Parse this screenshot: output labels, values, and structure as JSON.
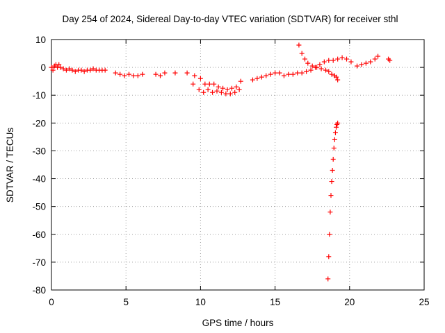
{
  "chart_data": {
    "type": "scatter",
    "title": "Day 254 of 2024, Sidereal Day-to-day VTEC variation (SDTVAR) for receiver sthl",
    "xlabel": "GPS time / hours",
    "ylabel": "SDTVAR / TECUs",
    "xlim": [
      0,
      25
    ],
    "ylim": [
      -80,
      10
    ],
    "xticks": [
      0,
      5,
      10,
      15,
      20,
      25
    ],
    "yticks": [
      10,
      0,
      -10,
      -20,
      -30,
      -40,
      -50,
      -60,
      -70,
      -80
    ],
    "grid": true,
    "marker": "+",
    "color": "#ff0000",
    "series": [
      {
        "name": "SDTVAR",
        "x": [
          0.0,
          0.1,
          0.2,
          0.3,
          0.4,
          0.5,
          0.6,
          0.8,
          1.0,
          1.2,
          1.4,
          1.6,
          1.8,
          2.0,
          2.2,
          2.4,
          2.6,
          2.8,
          3.0,
          3.2,
          3.4,
          3.6,
          4.3,
          4.6,
          4.9,
          5.2,
          5.5,
          5.8,
          6.1,
          7.0,
          7.3,
          7.6,
          8.3,
          9.1,
          9.6,
          10.0,
          10.3,
          10.6,
          10.9,
          11.2,
          11.5,
          11.8,
          12.1,
          12.4,
          12.7,
          9.5,
          9.9,
          10.2,
          10.5,
          10.8,
          11.1,
          11.4,
          11.7,
          12.0,
          12.3,
          12.6,
          13.5,
          13.8,
          14.1,
          14.4,
          14.7,
          15.0,
          15.3,
          15.6,
          15.9,
          16.2,
          16.5,
          16.8,
          17.1,
          17.4,
          17.7,
          18.0,
          18.3,
          18.6,
          18.9,
          19.2,
          19.5,
          19.8,
          20.1,
          20.5,
          20.8,
          21.1,
          21.4,
          21.7,
          21.9,
          22.6,
          22.7,
          16.6,
          16.8,
          17.0,
          17.2,
          17.5,
          17.8,
          18.1,
          18.4,
          18.6,
          18.8,
          19.0,
          19.1,
          19.2,
          18.55,
          18.6,
          18.65,
          18.7,
          18.75,
          18.8,
          18.85,
          18.9,
          18.95,
          19.0,
          19.05,
          19.1,
          19.15,
          19.2
        ],
        "y": [
          0,
          -1,
          0.5,
          1,
          0,
          1,
          0,
          -0.5,
          -1,
          -0.5,
          -1,
          -1.5,
          -1,
          -1,
          -1.5,
          -1,
          -1,
          -0.5,
          -1,
          -1,
          -1,
          -1,
          -2,
          -2.5,
          -3,
          -2.5,
          -3,
          -3,
          -2.5,
          -2.5,
          -3,
          -2,
          -2,
          -2,
          -3,
          -4,
          -6,
          -6,
          -6,
          -7,
          -7.5,
          -8,
          -7.5,
          -7,
          -5,
          -6,
          -8,
          -9,
          -8,
          -9,
          -8.5,
          -9,
          -9.5,
          -9.5,
          -9,
          -8,
          -4.5,
          -4,
          -3.5,
          -3,
          -2.5,
          -2,
          -2,
          -3,
          -2.5,
          -2.5,
          -2,
          -2,
          -1.5,
          -1,
          0,
          1,
          2,
          2.5,
          2.5,
          3,
          3.5,
          3,
          2,
          0.5,
          1,
          1.5,
          2,
          3,
          4,
          3,
          2.5,
          8,
          5,
          3,
          1.5,
          0.5,
          0,
          -0.5,
          -1,
          -1.5,
          -2.5,
          -3,
          -3.5,
          -4.5,
          -76,
          -68,
          -60,
          -52,
          -46,
          -41,
          -37,
          -33,
          -29,
          -26,
          -23.5,
          -21.5,
          -20.5,
          -20
        ]
      }
    ]
  }
}
